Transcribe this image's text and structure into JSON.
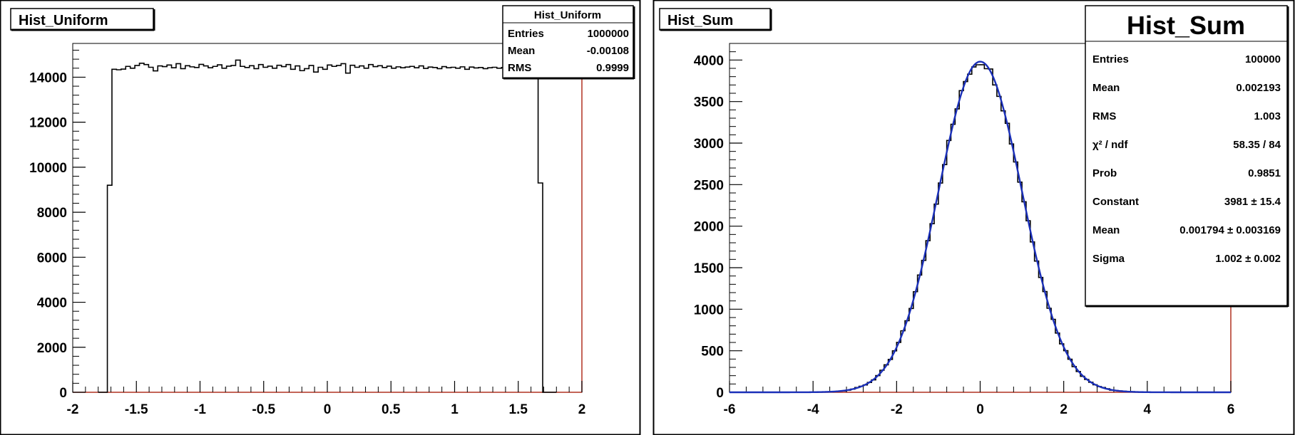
{
  "chart_data": [
    {
      "type": "bar",
      "title": "Hist_Uniform",
      "xlabel": "",
      "ylabel": "",
      "xlim": [
        -2,
        2
      ],
      "ylim": [
        0,
        15500
      ],
      "x_ticks": [
        "-2",
        "-1.5",
        "-1",
        "-0.5",
        "0",
        "0.5",
        "1",
        "1.5",
        "2"
      ],
      "y_ticks": [
        "0",
        "2000",
        "4000",
        "6000",
        "8000",
        "10000",
        "12000",
        "14000"
      ],
      "stats": {
        "title": "Hist_Uniform",
        "rows": [
          {
            "label": "Entries",
            "value": "1000000"
          },
          {
            "label": "Mean",
            "value": "-0.00108"
          },
          {
            "label": "RMS",
            "value": "0.9999"
          }
        ]
      },
      "bins": {
        "range": [
          -1.8,
          1.8
        ],
        "nbins": 100,
        "values": [
          0,
          0,
          9200,
          14350,
          14330,
          14360,
          14480,
          14400,
          14520,
          14620,
          14560,
          14440,
          14280,
          14500,
          14470,
          14540,
          14420,
          14600,
          14380,
          14510,
          14460,
          14430,
          14570,
          14500,
          14420,
          14480,
          14550,
          14400,
          14490,
          14520,
          14760,
          14480,
          14430,
          14510,
          14380,
          14560,
          14440,
          14490,
          14400,
          14530,
          14470,
          14560,
          14350,
          14500,
          14290,
          14380,
          14520,
          14230,
          14440,
          14350,
          14540,
          14480,
          14520,
          14600,
          14180,
          14530,
          14440,
          14500,
          14400,
          14560,
          14470,
          14510,
          14430,
          14490,
          14400,
          14460,
          14420,
          14450,
          14480,
          14420,
          14500,
          14390,
          14450,
          14430,
          14380,
          14470,
          14420,
          14440,
          14400,
          14460,
          14350,
          14450,
          14410,
          14430,
          14380,
          14420,
          14440,
          14400,
          14430,
          14410,
          14450,
          14420,
          14400,
          14440,
          14430,
          14420,
          9300,
          0,
          0,
          0
        ]
      }
    },
    {
      "type": "bar",
      "title": "Hist_Sum",
      "xlabel": "",
      "ylabel": "",
      "xlim": [
        -6,
        6
      ],
      "ylim": [
        0,
        4200
      ],
      "x_ticks": [
        "-6",
        "-4",
        "-2",
        "0",
        "2",
        "4",
        "6"
      ],
      "y_ticks": [
        "0",
        "500",
        "1000",
        "1500",
        "2000",
        "2500",
        "3000",
        "3500",
        "4000"
      ],
      "fit": {
        "function": "gaus",
        "constant": 3981,
        "mean": 0.001794,
        "sigma": 1.002,
        "color": "#1a2fb8"
      },
      "histogram": {
        "nbins": 120,
        "range": [
          -6,
          6
        ],
        "color": "#000000"
      },
      "stats": {
        "title": "Hist_Sum",
        "rows": [
          {
            "label": "Entries",
            "value": "100000"
          },
          {
            "label": "Mean",
            "value": "0.002193"
          },
          {
            "label": "RMS",
            "value": "1.003"
          },
          {
            "label": "χ² / ndf",
            "value": "58.35 / 84"
          },
          {
            "label": "Prob",
            "value": "0.9851"
          },
          {
            "label": "Constant",
            "value": "3981 ± 15.4"
          },
          {
            "label": "Mean",
            "value": "0.001794 ± 0.003169"
          },
          {
            "label": "Sigma",
            "value": "1.002 ± 0.002"
          }
        ]
      }
    }
  ]
}
